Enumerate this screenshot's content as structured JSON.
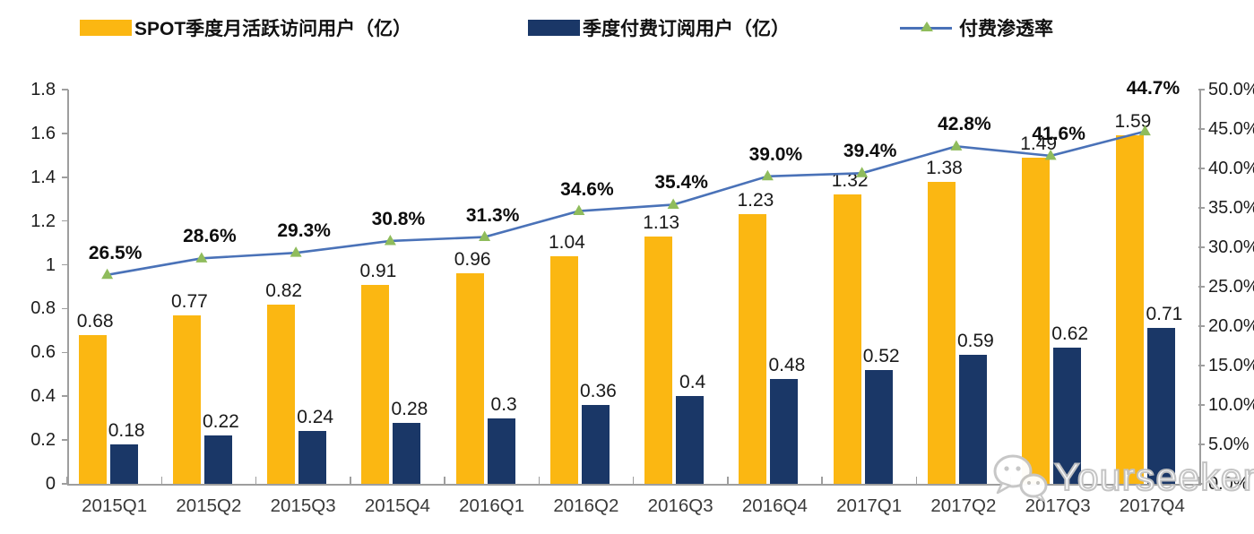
{
  "legend": {
    "items": [
      {
        "label": "SPOT季度月活跃访问用户（亿）",
        "swatch": "bar",
        "color": "#FBB712"
      },
      {
        "label": "季度付费订阅用户（亿）",
        "swatch": "bar",
        "color": "#1A3767"
      },
      {
        "label": "付费渗透率",
        "swatch": "line-marker",
        "color": "#4A72B8",
        "marker_color": "#8FBC5C"
      }
    ]
  },
  "chart_data": {
    "type": "combo bar+line",
    "categories": [
      "2015Q1",
      "2015Q2",
      "2015Q3",
      "2015Q4",
      "2016Q1",
      "2016Q2",
      "2016Q3",
      "2016Q4",
      "2017Q1",
      "2017Q2",
      "2017Q3",
      "2017Q4"
    ],
    "series": [
      {
        "name": "SPOT季度月活跃访问用户（亿）",
        "type": "bar",
        "yaxis": "left",
        "color": "#FBB712",
        "values": [
          0.68,
          0.77,
          0.82,
          0.91,
          0.96,
          1.04,
          1.13,
          1.23,
          1.32,
          1.38,
          1.49,
          1.59
        ],
        "labels": [
          "0.68",
          "0.77",
          "0.82",
          "0.91",
          "0.96",
          "1.04",
          "1.13",
          "1.23",
          "1.32",
          "1.38",
          "1.49",
          "1.59"
        ]
      },
      {
        "name": "季度付费订阅用户（亿）",
        "type": "bar",
        "yaxis": "left",
        "color": "#1A3767",
        "values": [
          0.18,
          0.22,
          0.24,
          0.28,
          0.3,
          0.36,
          0.4,
          0.48,
          0.52,
          0.59,
          0.62,
          0.71
        ],
        "labels": [
          "0.18",
          "0.22",
          "0.24",
          "0.28",
          "0.3",
          "0.36",
          "0.4",
          "0.48",
          "0.52",
          "0.59",
          "0.62",
          "0.71"
        ]
      },
      {
        "name": "付费渗透率",
        "type": "line",
        "yaxis": "right",
        "color": "#4A72B8",
        "marker": "triangle",
        "marker_color": "#8FBC5C",
        "values": [
          26.5,
          28.6,
          29.3,
          30.8,
          31.3,
          34.6,
          35.4,
          39.0,
          39.4,
          42.8,
          41.6,
          44.7
        ],
        "labels": [
          "26.5%",
          "28.6%",
          "29.3%",
          "30.8%",
          "31.3%",
          "34.6%",
          "35.4%",
          "39.0%",
          "39.4%",
          "42.8%",
          "41.6%",
          "44.7%"
        ]
      }
    ],
    "left_axis": {
      "min": 0,
      "max": 1.8,
      "tick_step": 0.2,
      "tick_labels": [
        "0",
        "0.2",
        "0.4",
        "0.6",
        "0.8",
        "1",
        "1.2",
        "1.4",
        "1.6",
        "1.8"
      ]
    },
    "right_axis": {
      "min": 0,
      "max": 50,
      "tick_step": 5,
      "tick_labels": [
        "0.0%",
        "5.0%",
        "10.0%",
        "15.0%",
        "20.0%",
        "25.0%",
        "30.0%",
        "35.0%",
        "40.0%",
        "45.0%",
        "50.0%"
      ]
    },
    "grid": false,
    "legend_position": "top"
  },
  "watermark": {
    "text": "Yourseeker",
    "icon": "wechat-icon"
  }
}
